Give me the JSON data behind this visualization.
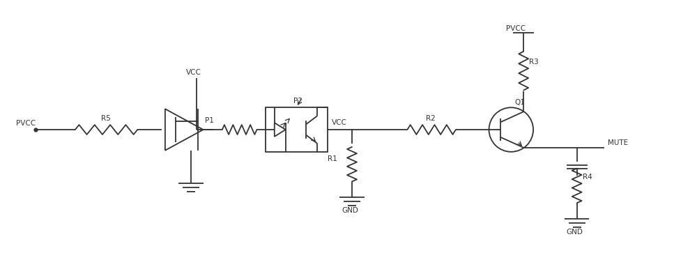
{
  "bg_color": "#ffffff",
  "line_color": "#333333",
  "text_color": "#333333",
  "line_width": 1.3,
  "fig_width": 10.0,
  "fig_height": 3.86,
  "xlim": [
    0,
    100
  ],
  "ylim": [
    0,
    38.6
  ]
}
